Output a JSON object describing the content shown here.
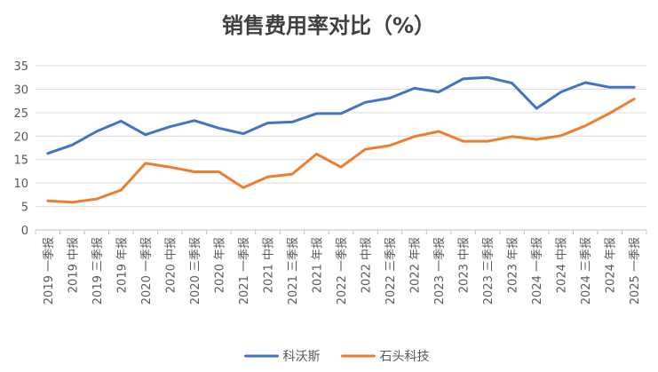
{
  "chart_data": {
    "type": "line",
    "title": "销售费用率对比（%）",
    "xlabel": "",
    "ylabel": "",
    "ylim": [
      0,
      35
    ],
    "yticks": [
      0,
      5,
      10,
      15,
      20,
      25,
      30,
      35
    ],
    "grid": true,
    "legend_position": "bottom",
    "categories": [
      "2019 一季报",
      "2019 中报",
      "2019 三季报",
      "2019 年报",
      "2020 一季报",
      "2020 中报",
      "2020 三季报",
      "2020 年报",
      "2021 一季报",
      "2021 中报",
      "2021 三季报",
      "2021 年报",
      "2022 一季报",
      "2022 中报",
      "2022 三季报",
      "2022 年报",
      "2023 一季报",
      "2023 中报",
      "2023 三季报",
      "2023 年报",
      "2024 一季报",
      "2024 中报",
      "2024 三季报",
      "2024 年报",
      "2025 一季报"
    ],
    "series": [
      {
        "name": "科沃斯",
        "color": "#4472C4",
        "values": [
          16.3,
          18.1,
          21.0,
          23.2,
          20.3,
          22.0,
          23.3,
          21.7,
          20.5,
          22.8,
          23.0,
          24.8,
          24.8,
          27.2,
          28.1,
          30.2,
          29.4,
          32.2,
          32.5,
          31.3,
          25.9,
          29.4,
          31.4,
          30.4,
          30.4
        ]
      },
      {
        "name": "石头科技",
        "color": "#ED7D31",
        "values": [
          6.2,
          5.9,
          6.6,
          8.5,
          14.2,
          13.4,
          12.4,
          12.4,
          9.0,
          11.3,
          11.9,
          16.2,
          13.4,
          17.2,
          18.0,
          19.9,
          21.0,
          18.9,
          18.9,
          19.9,
          19.3,
          20.1,
          22.2,
          24.9,
          27.9
        ]
      }
    ]
  }
}
